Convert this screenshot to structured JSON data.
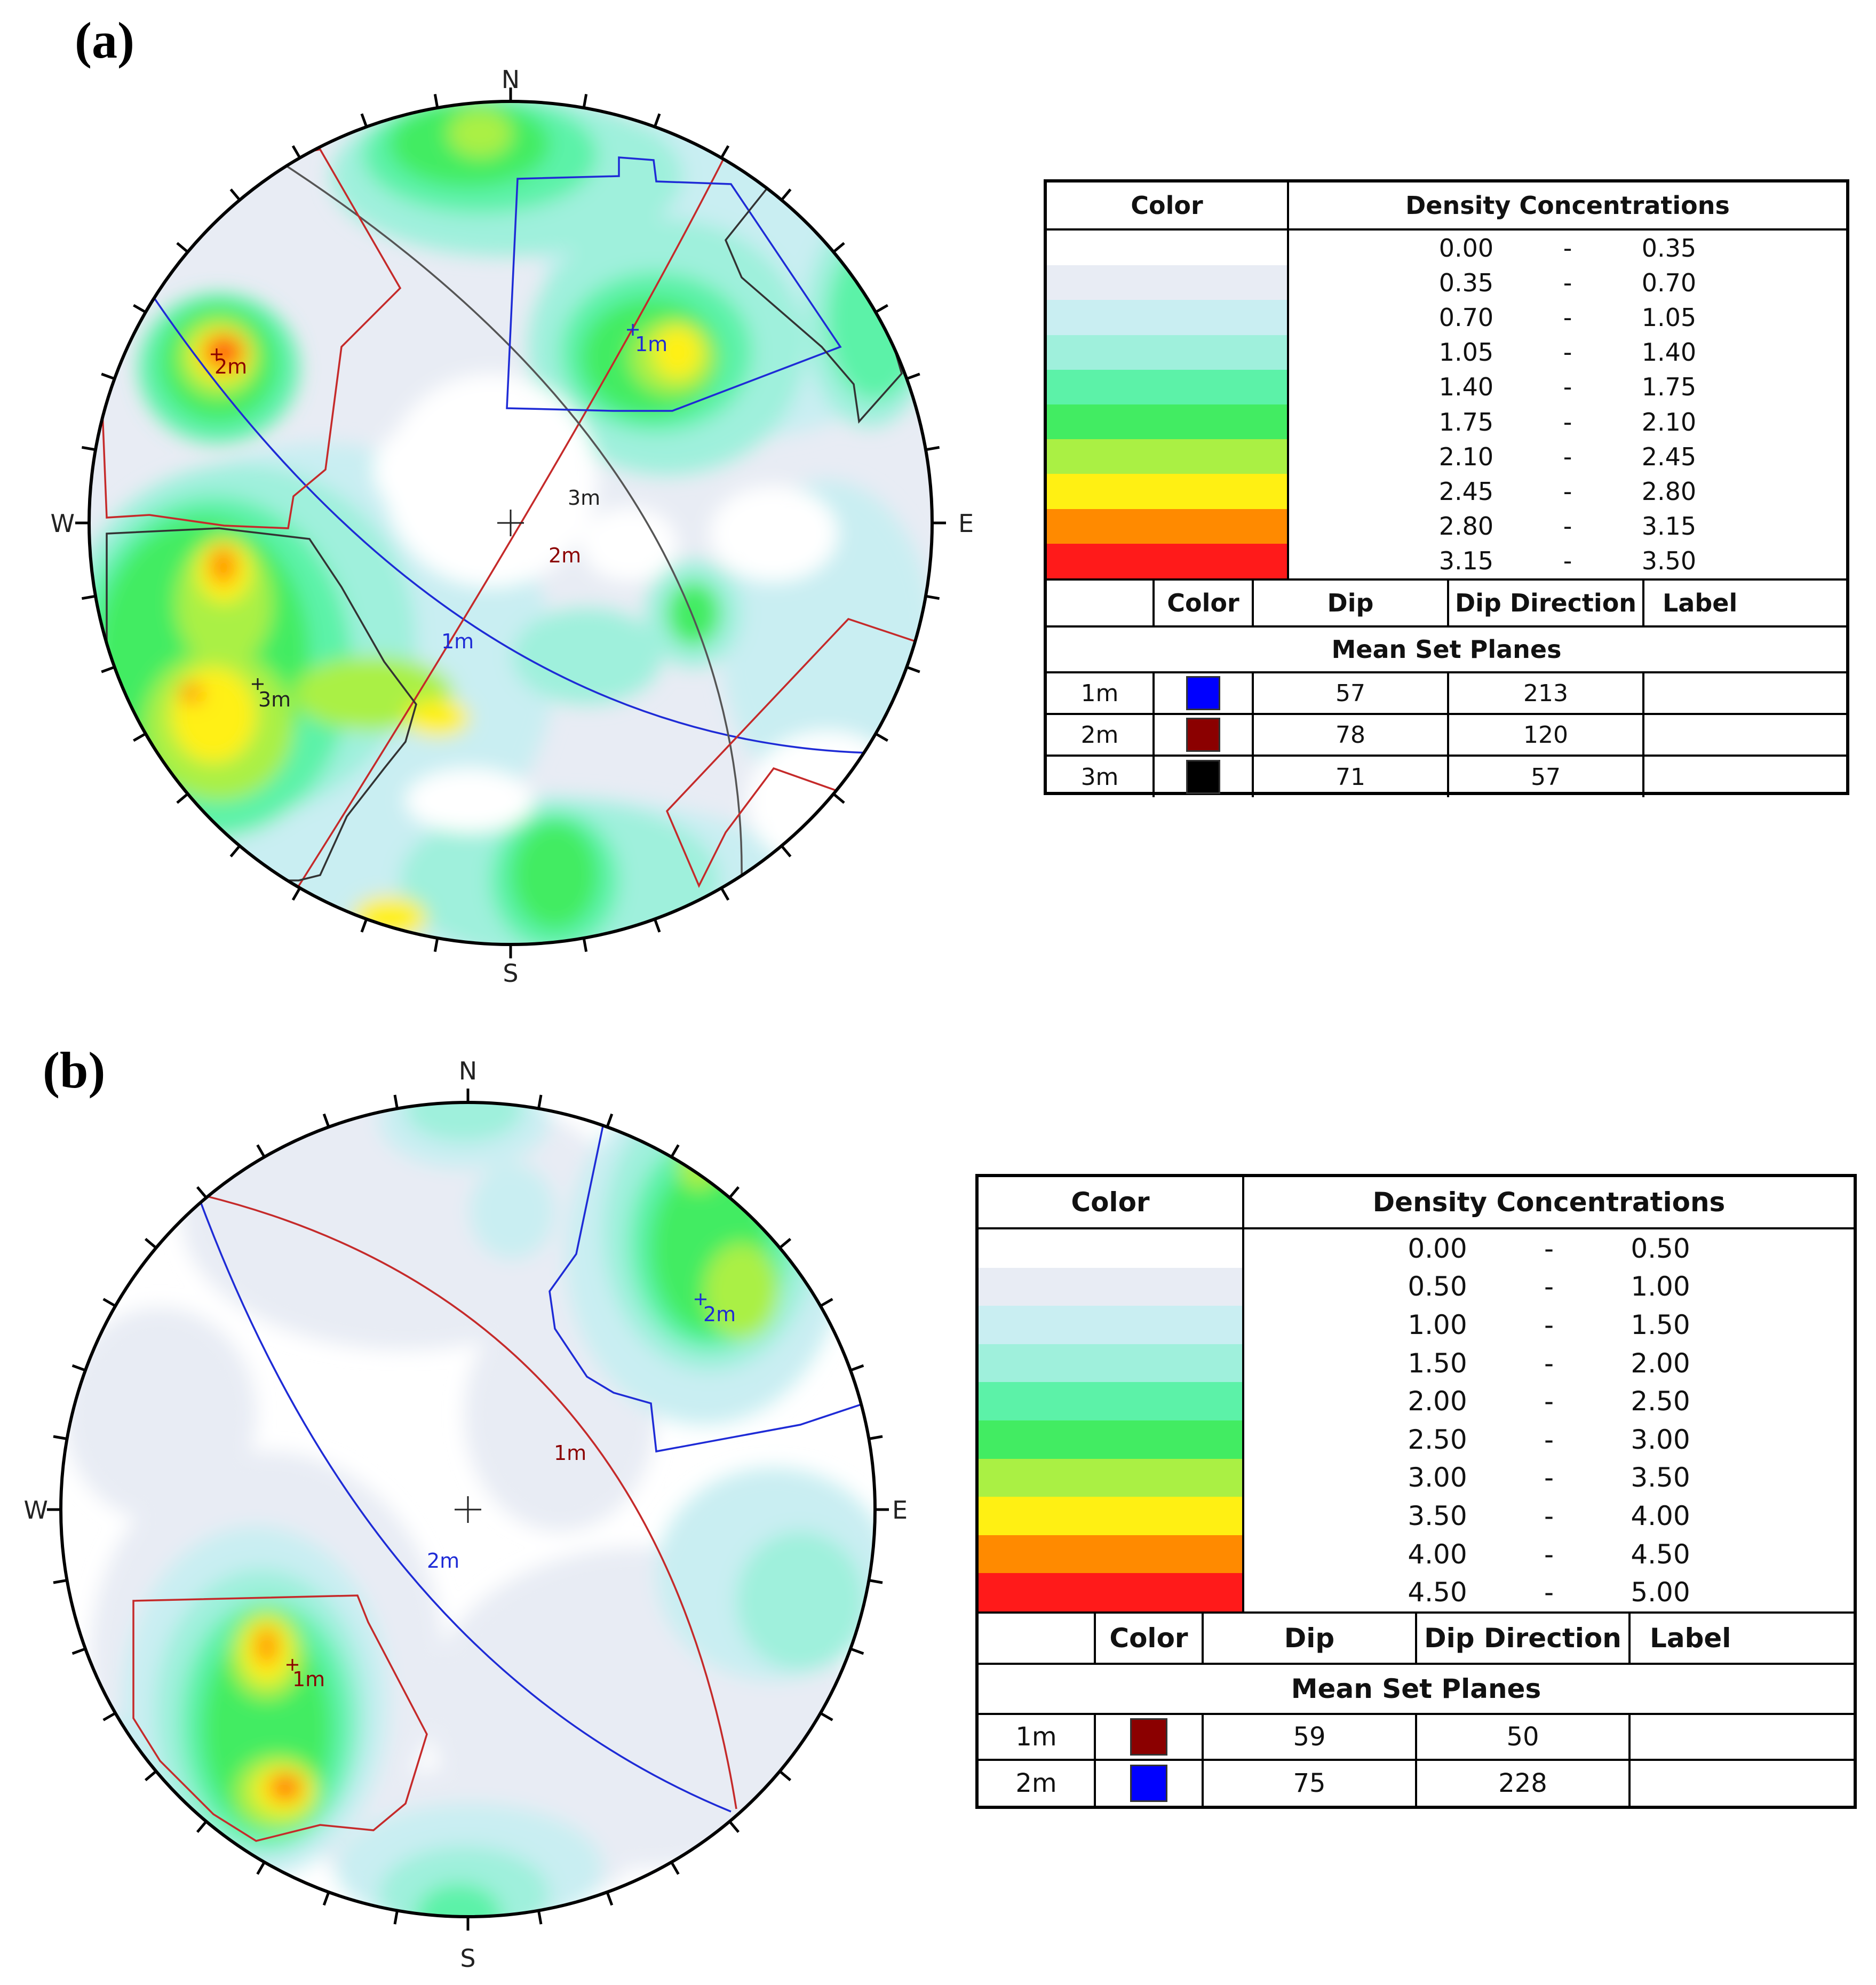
{
  "colors": {
    "scale": [
      "#ffffff",
      "#e8ecf4",
      "#c9eef2",
      "#9ff0dc",
      "#5cf2a8",
      "#42ec62",
      "#aaf044",
      "#fff013",
      "#ff8a00",
      "#ff1a1a"
    ],
    "blue": "#1e2bd6",
    "red": "#c52a2a",
    "black": "#333333",
    "swatch_blue": "#0000ff",
    "swatch_red": "#8b0000",
    "swatch_black": "#000000"
  },
  "panel_a": {
    "label": "(a)",
    "compass": {
      "n": "N",
      "e": "E",
      "s": "S",
      "w": "W"
    },
    "mean_set_labels": [
      "1m",
      "2m",
      "3m"
    ],
    "legend": {
      "color_header": "Color",
      "density_header": "Density Concentrations",
      "ranges": [
        {
          "low": "0.00",
          "sep": "-",
          "high": "0.35"
        },
        {
          "low": "0.35",
          "sep": "-",
          "high": "0.70"
        },
        {
          "low": "0.70",
          "sep": "-",
          "high": "1.05"
        },
        {
          "low": "1.05",
          "sep": "-",
          "high": "1.40"
        },
        {
          "low": "1.40",
          "sep": "-",
          "high": "1.75"
        },
        {
          "low": "1.75",
          "sep": "-",
          "high": "2.10"
        },
        {
          "low": "2.10",
          "sep": "-",
          "high": "2.45"
        },
        {
          "low": "2.45",
          "sep": "-",
          "high": "2.80"
        },
        {
          "low": "2.80",
          "sep": "-",
          "high": "3.15"
        },
        {
          "low": "3.15",
          "sep": "-",
          "high": "3.50"
        }
      ],
      "columns": {
        "color": "Color",
        "dip": "Dip",
        "dip_direction": "Dip Direction",
        "label": "Label"
      },
      "section_title": "Mean Set Planes",
      "rows": [
        {
          "id": "1m",
          "swatch": "#0000ff",
          "dip": "57",
          "dip_direction": "213",
          "label": ""
        },
        {
          "id": "2m",
          "swatch": "#8b0000",
          "dip": "78",
          "dip_direction": "120",
          "label": ""
        },
        {
          "id": "3m",
          "swatch": "#000000",
          "dip": "71",
          "dip_direction": "57",
          "label": ""
        }
      ]
    }
  },
  "panel_b": {
    "label": "(b)",
    "compass": {
      "n": "N",
      "e": "E",
      "s": "S",
      "w": "W"
    },
    "mean_set_labels": [
      "1m",
      "2m"
    ],
    "legend": {
      "color_header": "Color",
      "density_header": "Density Concentrations",
      "ranges": [
        {
          "low": "0.00",
          "sep": "-",
          "high": "0.50"
        },
        {
          "low": "0.50",
          "sep": "-",
          "high": "1.00"
        },
        {
          "low": "1.00",
          "sep": "-",
          "high": "1.50"
        },
        {
          "low": "1.50",
          "sep": "-",
          "high": "2.00"
        },
        {
          "low": "2.00",
          "sep": "-",
          "high": "2.50"
        },
        {
          "low": "2.50",
          "sep": "-",
          "high": "3.00"
        },
        {
          "low": "3.00",
          "sep": "-",
          "high": "3.50"
        },
        {
          "low": "3.50",
          "sep": "-",
          "high": "4.00"
        },
        {
          "low": "4.00",
          "sep": "-",
          "high": "4.50"
        },
        {
          "low": "4.50",
          "sep": "-",
          "high": "5.00"
        }
      ],
      "columns": {
        "color": "Color",
        "dip": "Dip",
        "dip_direction": "Dip Direction",
        "label": "Label"
      },
      "section_title": "Mean Set Planes",
      "rows": [
        {
          "id": "1m",
          "swatch": "#8b0000",
          "dip": "59",
          "dip_direction": "50",
          "label": ""
        },
        {
          "id": "2m",
          "swatch": "#0000ff",
          "dip": "75",
          "dip_direction": "228",
          "label": ""
        }
      ]
    }
  }
}
